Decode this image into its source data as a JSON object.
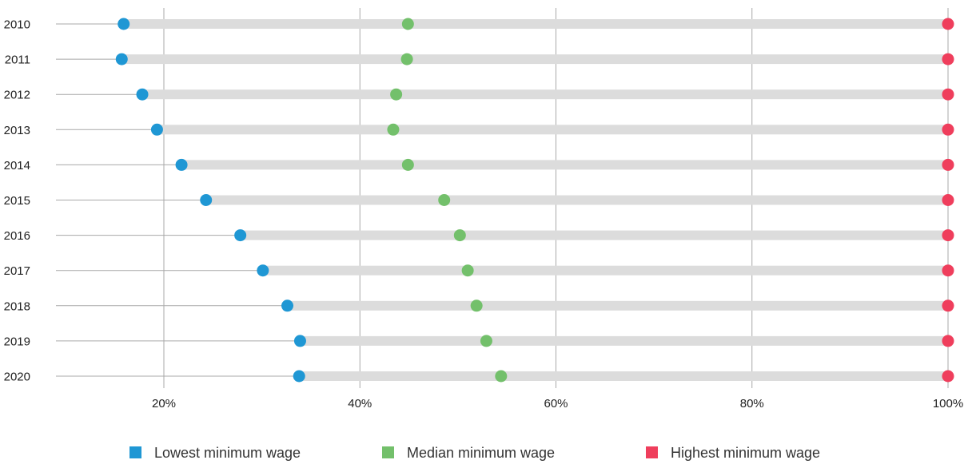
{
  "chart_data": {
    "type": "dot-range",
    "categories": [
      "2010",
      "2011",
      "2012",
      "2013",
      "2014",
      "2015",
      "2016",
      "2017",
      "2018",
      "2019",
      "2020"
    ],
    "series": [
      {
        "name": "Lowest minimum wage",
        "color": "#1f97d4",
        "values": [
          15.9,
          15.7,
          17.8,
          19.3,
          21.8,
          24.3,
          27.8,
          30.1,
          32.6,
          33.9,
          33.8
        ]
      },
      {
        "name": "Median minimum wage",
        "color": "#73c06b",
        "values": [
          44.9,
          44.8,
          43.7,
          43.4,
          44.9,
          48.6,
          50.2,
          51.0,
          51.9,
          52.9,
          54.4
        ]
      },
      {
        "name": "Highest minimum wage",
        "color": "#ef3e5c",
        "values": [
          100,
          100,
          100,
          100,
          100,
          100,
          100,
          100,
          100,
          100,
          100
        ]
      }
    ],
    "x_ticks": [
      "20%",
      "40%",
      "60%",
      "80%",
      "100%"
    ],
    "x_tick_values": [
      20,
      40,
      60,
      80,
      100
    ],
    "xlim": [
      8.9,
      100
    ],
    "grid": true,
    "legend_position": "bottom"
  }
}
